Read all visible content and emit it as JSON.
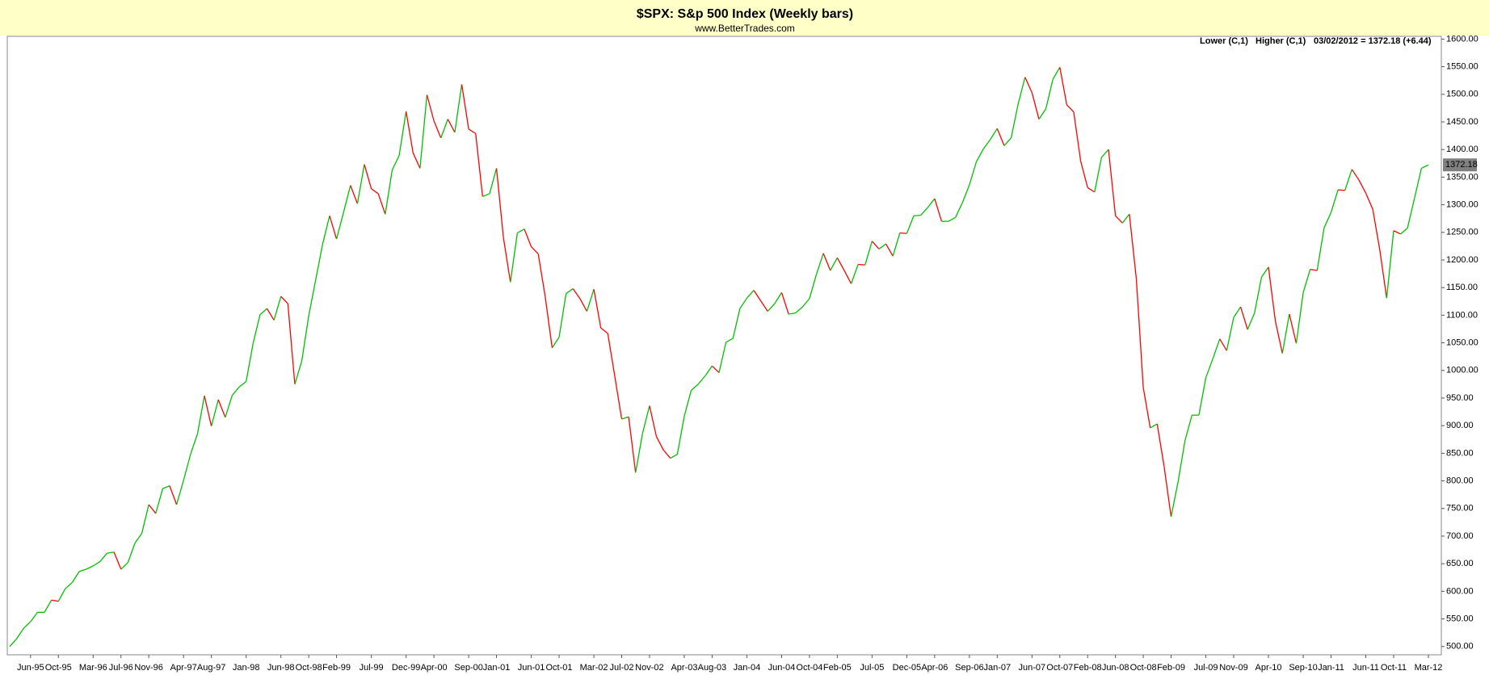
{
  "chart_data": {
    "type": "line",
    "title": "$SPX:  S&p 500 Index  (Weekly bars)",
    "subtitle": "www.BetterTrades.com",
    "legend": [
      {
        "label": "Lower (C,1)",
        "color": "#ff0000"
      },
      {
        "label": "Higher (C,1)",
        "color": "#00c000"
      }
    ],
    "last_note": "03/02/2012 = 1372.18 (+6.44)",
    "categories": [
      "Mar-95",
      "Apr-95",
      "May-95",
      "Jun-95",
      "Jul-95",
      "Aug-95",
      "Sep-95",
      "Oct-95",
      "Nov-95",
      "Dec-95",
      "Jan-96",
      "Feb-96",
      "Mar-96",
      "Apr-96",
      "May-96",
      "Jun-96",
      "Jul-96",
      "Aug-96",
      "Sep-96",
      "Oct-96",
      "Nov-96",
      "Dec-96",
      "Jan-97",
      "Feb-97",
      "Mar-97",
      "Apr-97",
      "May-97",
      "Jun-97",
      "Jul-97",
      "Aug-97",
      "Sep-97",
      "Oct-97",
      "Nov-97",
      "Dec-97",
      "Jan-98",
      "Feb-98",
      "Mar-98",
      "Apr-98",
      "May-98",
      "Jun-98",
      "Jul-98",
      "Aug-98",
      "Sep-98",
      "Oct-98",
      "Nov-98",
      "Dec-98",
      "Jan-99",
      "Feb-99",
      "Mar-99",
      "Apr-99",
      "May-99",
      "Jun-99",
      "Jul-99",
      "Aug-99",
      "Sep-99",
      "Oct-99",
      "Nov-99",
      "Dec-99",
      "Jan-00",
      "Feb-00",
      "Mar-00",
      "Apr-00",
      "May-00",
      "Jun-00",
      "Jul-00",
      "Aug-00",
      "Sep-00",
      "Oct-00",
      "Nov-00",
      "Dec-00",
      "Jan-01",
      "Feb-01",
      "Mar-01",
      "Apr-01",
      "May-01",
      "Jun-01",
      "Jul-01",
      "Aug-01",
      "Sep-01",
      "Oct-01",
      "Nov-01",
      "Dec-01",
      "Jan-02",
      "Feb-02",
      "Mar-02",
      "Apr-02",
      "May-02",
      "Jun-02",
      "Jul-02",
      "Aug-02",
      "Sep-02",
      "Oct-02",
      "Nov-02",
      "Dec-02",
      "Jan-03",
      "Feb-03",
      "Mar-03",
      "Apr-03",
      "May-03",
      "Jun-03",
      "Jul-03",
      "Aug-03",
      "Sep-03",
      "Oct-03",
      "Nov-03",
      "Dec-03",
      "Jan-04",
      "Feb-04",
      "Mar-04",
      "Apr-04",
      "May-04",
      "Jun-04",
      "Jul-04",
      "Aug-04",
      "Sep-04",
      "Oct-04",
      "Nov-04",
      "Dec-04",
      "Jan-05",
      "Feb-05",
      "Mar-05",
      "Apr-05",
      "May-05",
      "Jun-05",
      "Jul-05",
      "Aug-05",
      "Sep-05",
      "Oct-05",
      "Nov-05",
      "Dec-05",
      "Jan-06",
      "Feb-06",
      "Mar-06",
      "Apr-06",
      "May-06",
      "Jun-06",
      "Jul-06",
      "Aug-06",
      "Sep-06",
      "Oct-06",
      "Nov-06",
      "Dec-06",
      "Jan-07",
      "Feb-07",
      "Mar-07",
      "Apr-07",
      "May-07",
      "Jun-07",
      "Jul-07",
      "Aug-07",
      "Sep-07",
      "Oct-07",
      "Nov-07",
      "Dec-07",
      "Jan-08",
      "Feb-08",
      "Mar-08",
      "Apr-08",
      "May-08",
      "Jun-08",
      "Jul-08",
      "Aug-08",
      "Sep-08",
      "Oct-08",
      "Nov-08",
      "Dec-08",
      "Jan-09",
      "Feb-09",
      "Mar-09",
      "Apr-09",
      "May-09",
      "Jun-09",
      "Jul-09",
      "Aug-09",
      "Sep-09",
      "Oct-09",
      "Nov-09",
      "Dec-09",
      "Jan-10",
      "Feb-10",
      "Mar-10",
      "Apr-10",
      "May-10",
      "Jun-10",
      "Jul-10",
      "Aug-10",
      "Sep-10",
      "Oct-10",
      "Nov-10",
      "Dec-10",
      "Jan-11",
      "Feb-11",
      "Mar-11",
      "Apr-11",
      "May-11",
      "Jun-11",
      "Jul-11",
      "Aug-11",
      "Sep-11",
      "Oct-11",
      "Nov-11",
      "Dec-11",
      "Jan-12",
      "Feb-12",
      "Mar-12"
    ],
    "values": [
      500,
      514,
      533,
      545,
      562,
      562,
      584,
      582,
      605,
      616,
      636,
      640,
      646,
      654,
      669,
      671,
      640,
      652,
      687,
      705,
      757,
      741,
      786,
      791,
      757,
      801,
      848,
      885,
      954,
      899,
      947,
      915,
      955,
      970,
      980,
      1049,
      1101,
      1112,
      1091,
      1134,
      1121,
      975,
      1017,
      1099,
      1164,
      1229,
      1280,
      1238,
      1286,
      1335,
      1302,
      1373,
      1329,
      1320,
      1283,
      1363,
      1389,
      1469,
      1394,
      1366,
      1499,
      1452,
      1421,
      1455,
      1431,
      1518,
      1437,
      1429,
      1315,
      1320,
      1366,
      1240,
      1160,
      1249,
      1256,
      1224,
      1211,
      1134,
      1041,
      1060,
      1139,
      1148,
      1130,
      1107,
      1147,
      1077,
      1067,
      990,
      912,
      916,
      815,
      886,
      936,
      880,
      856,
      841,
      848,
      917,
      964,
      975,
      990,
      1008,
      996,
      1051,
      1058,
      1112,
      1131,
      1145,
      1126,
      1107,
      1121,
      1141,
      1102,
      1104,
      1115,
      1130,
      1174,
      1212,
      1181,
      1204,
      1181,
      1157,
      1192,
      1191,
      1234,
      1220,
      1229,
      1207,
      1249,
      1248,
      1280,
      1281,
      1295,
      1311,
      1270,
      1270,
      1277,
      1304,
      1336,
      1378,
      1401,
      1418,
      1438,
      1407,
      1421,
      1482,
      1531,
      1503,
      1455,
      1474,
      1527,
      1549,
      1481,
      1468,
      1379,
      1331,
      1323,
      1386,
      1400,
      1280,
      1267,
      1283,
      1166,
      969,
      896,
      903,
      826,
      735,
      798,
      873,
      919,
      919,
      987,
      1021,
      1057,
      1036,
      1096,
      1115,
      1074,
      1104,
      1169,
      1187,
      1089,
      1031,
      1102,
      1049,
      1141,
      1183,
      1181,
      1258,
      1286,
      1327,
      1326,
      1364,
      1345,
      1321,
      1292,
      1219,
      1131,
      1253,
      1247,
      1258,
      1312,
      1366,
      1372.18
    ],
    "xticks": [
      "Jun-95",
      "Oct-95",
      "Mar-96",
      "Jul-96",
      "Nov-96",
      "Apr-97",
      "Aug-97",
      "Jan-98",
      "Jun-98",
      "Oct-98",
      "Feb-99",
      "Jul-99",
      "Dec-99",
      "Apr-00",
      "Sep-00",
      "Jan-01",
      "Jun-01",
      "Oct-01",
      "Mar-02",
      "Jul-02",
      "Nov-02",
      "Apr-03",
      "Aug-03",
      "Jan-04",
      "Jun-04",
      "Oct-04",
      "Feb-05",
      "Jul-05",
      "Dec-05",
      "Apr-06",
      "Sep-06",
      "Jan-07",
      "Jun-07",
      "Oct-07",
      "Feb-08",
      "Jun-08",
      "Oct-08",
      "Feb-09",
      "Jul-09",
      "Nov-09",
      "Apr-10",
      "Sep-10",
      "Jan-11",
      "Jun-11",
      "Oct-11",
      "Mar-12"
    ],
    "ylim": [
      485,
      1605
    ],
    "yticks": [
      {
        "value": 500,
        "label": "500.00"
      },
      {
        "value": 550,
        "label": "550.00"
      },
      {
        "value": 600,
        "label": "600.00"
      },
      {
        "value": 650,
        "label": "650.00"
      },
      {
        "value": 700,
        "label": "700.00"
      },
      {
        "value": 750,
        "label": "750.00"
      },
      {
        "value": 800,
        "label": "800.00"
      },
      {
        "value": 850,
        "label": "850.00"
      },
      {
        "value": 900,
        "label": "900.00"
      },
      {
        "value": 950,
        "label": "950.00"
      },
      {
        "value": 1000,
        "label": "1000.00"
      },
      {
        "value": 1050,
        "label": "1050.00"
      },
      {
        "value": 1100,
        "label": "1100.00"
      },
      {
        "value": 1150,
        "label": "1150.00"
      },
      {
        "value": 1200,
        "label": "1200.00"
      },
      {
        "value": 1250,
        "label": "1250.00"
      },
      {
        "value": 1300,
        "label": "1300.00"
      },
      {
        "value": 1350,
        "label": "1350.00"
      },
      {
        "value": 1400,
        "label": "1400.00"
      },
      {
        "value": 1450,
        "label": "1450.00"
      },
      {
        "value": 1500,
        "label": "1500.00"
      },
      {
        "value": 1550,
        "label": "1550.00"
      },
      {
        "value": 1600,
        "label": "1600.00"
      }
    ],
    "grid": false
  }
}
